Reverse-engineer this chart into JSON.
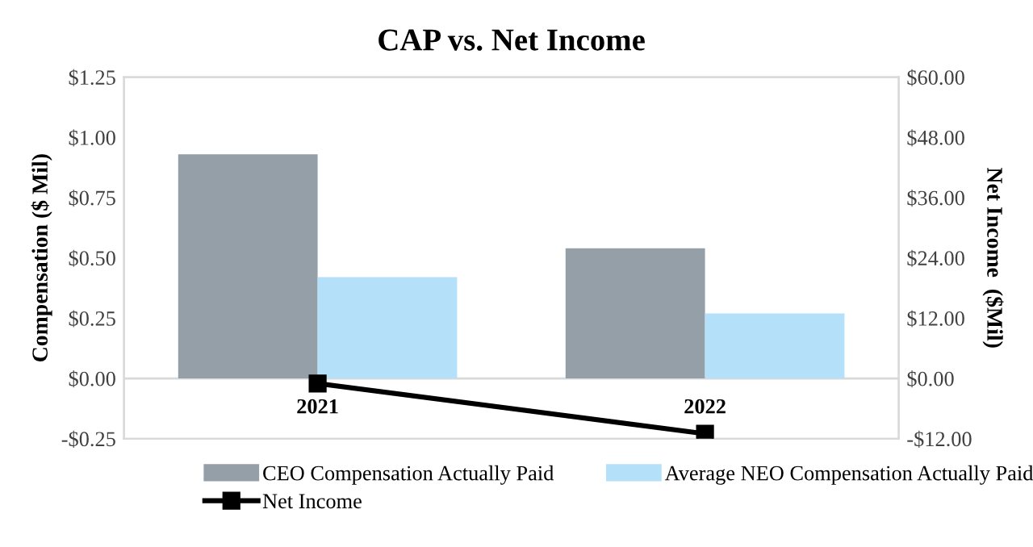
{
  "chart_data": {
    "type": "bar",
    "title": "CAP vs. Net Income",
    "ylabel": "Compensation ($ Mil)",
    "y2label": "Net Income  ($Mil)",
    "categories": [
      "2021",
      "2022"
    ],
    "series": [
      {
        "name": "CEO Compensation Actually Paid",
        "color": "#959fa8",
        "values": [
          0.93,
          0.54
        ]
      },
      {
        "name": "Average NEO Compensation Actually Paid",
        "color": "#b4e0fa",
        "values": [
          0.42,
          0.27
        ]
      },
      {
        "name": "Net Income",
        "type": "line",
        "axis": "y2",
        "color": "#000000",
        "marker": "square",
        "values": [
          -1,
          -11
        ]
      }
    ],
    "ylim": [
      -0.25,
      1.25
    ],
    "yticks": [
      {
        "value": -0.25,
        "label": "-$0.25"
      },
      {
        "value": 0,
        "label": "$0.00"
      },
      {
        "value": 0.25,
        "label": "$0.25"
      },
      {
        "value": 0.5,
        "label": "$0.50"
      },
      {
        "value": 0.75,
        "label": "$0.75"
      },
      {
        "value": 1.0,
        "label": "$1.00"
      },
      {
        "value": 1.25,
        "label": "$1.25"
      }
    ],
    "y2lim": [
      -12,
      60
    ],
    "y2ticks": [
      {
        "value": -12,
        "label": "-$12.00"
      },
      {
        "value": 0,
        "label": "$0.00"
      },
      {
        "value": 12,
        "label": "$12.00"
      },
      {
        "value": 24,
        "label": "$24.00"
      },
      {
        "value": 36,
        "label": "$36.00"
      },
      {
        "value": 48,
        "label": "$48.00"
      },
      {
        "value": 60,
        "label": "$60.00"
      }
    ],
    "grid": false,
    "legend": "bottom"
  }
}
